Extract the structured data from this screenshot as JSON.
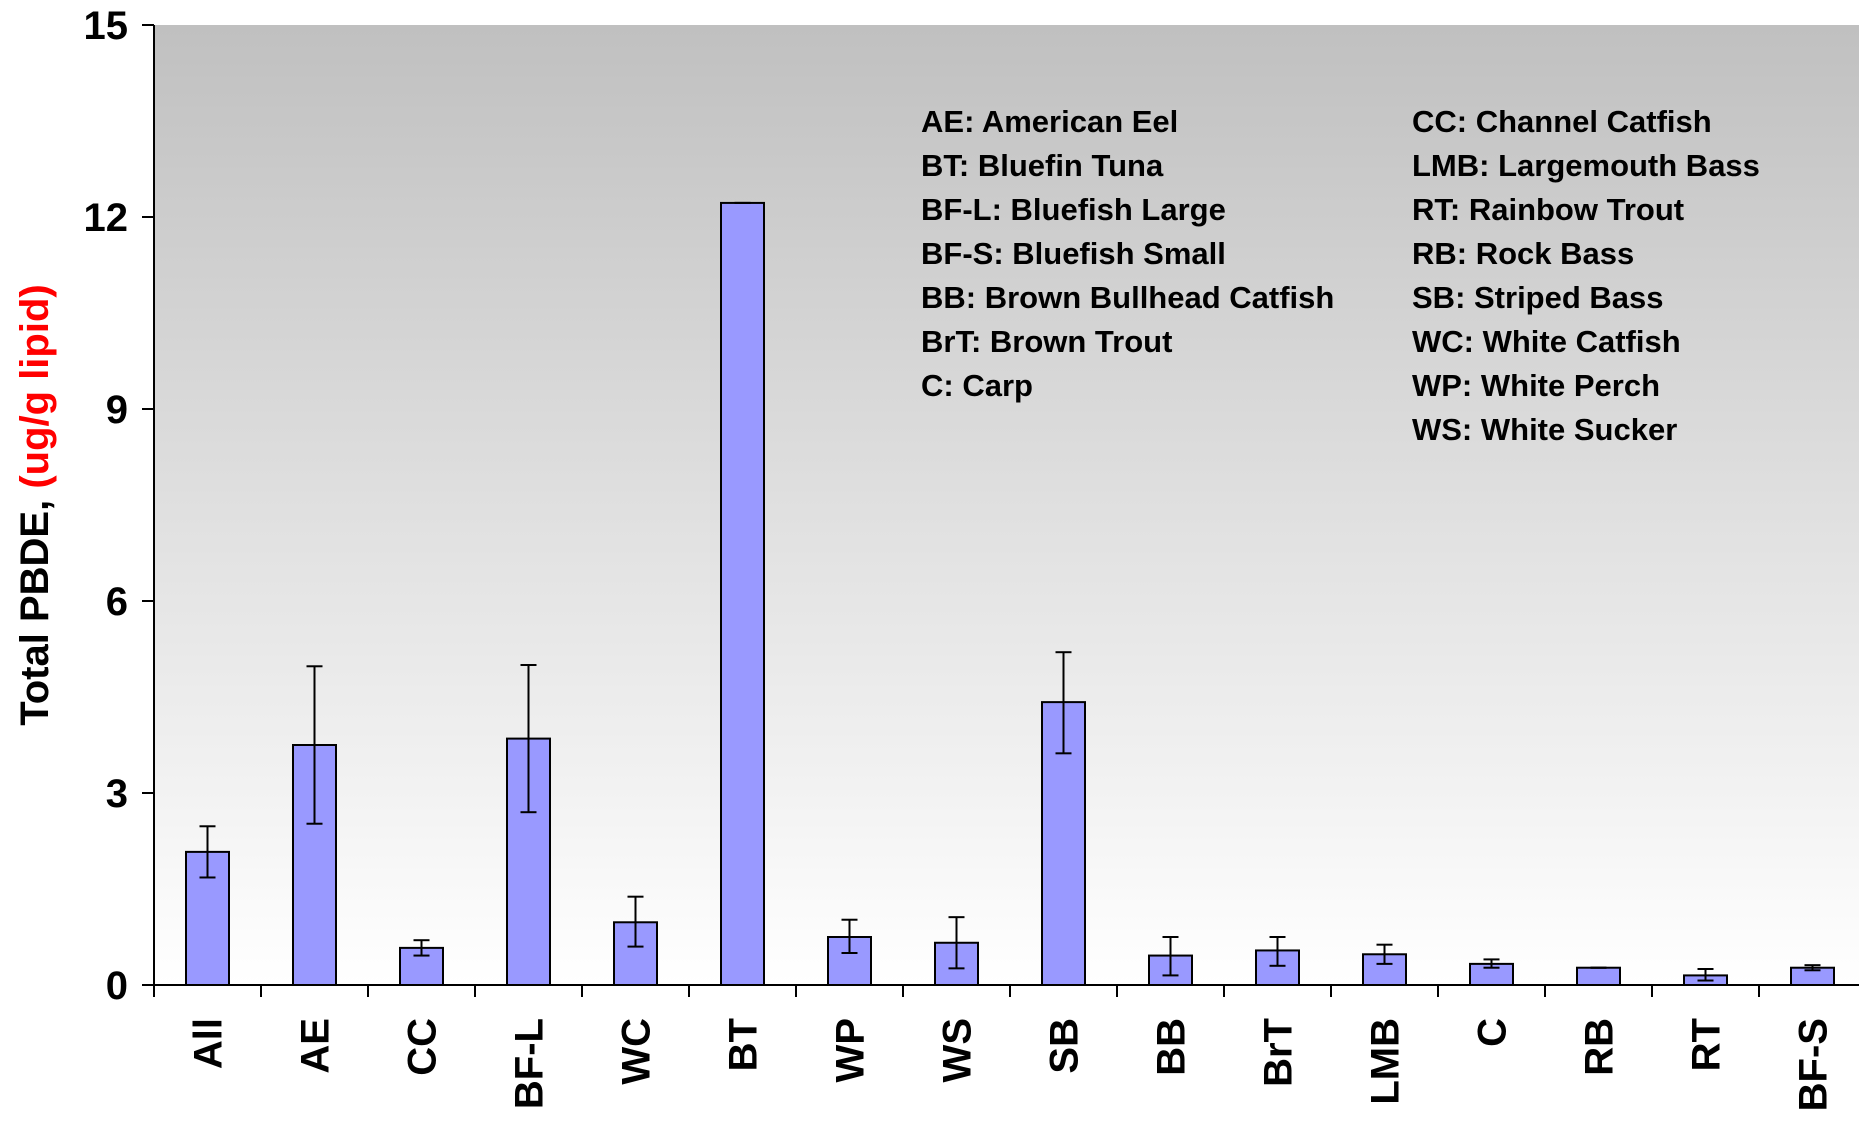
{
  "chart_data": {
    "type": "bar",
    "ylabel_main": "Total PBDE, ",
    "ylabel_unit": "(ug/g lipid)",
    "ylim": [
      0,
      15
    ],
    "yticks": [
      "0",
      "3",
      "6",
      "9",
      "12",
      "15"
    ],
    "ytick_values": [
      0,
      3,
      6,
      9,
      12,
      15
    ],
    "categories": [
      "All",
      "AE",
      "CC",
      "BF-L",
      "WC",
      "BT",
      "WP",
      "WS",
      "SB",
      "BB",
      "BrT",
      "LMB",
      "C",
      "RB",
      "RT",
      "BF-S"
    ],
    "values": [
      2.08,
      3.75,
      0.58,
      3.85,
      0.98,
      12.22,
      0.75,
      0.66,
      4.42,
      0.46,
      0.54,
      0.48,
      0.33,
      0.27,
      0.15,
      0.27
    ],
    "err_low": [
      1.68,
      2.52,
      0.46,
      2.7,
      0.6,
      12.22,
      0.5,
      0.26,
      3.62,
      0.15,
      0.3,
      0.33,
      0.27,
      0.27,
      0.07,
      0.23
    ],
    "err_high": [
      2.48,
      4.98,
      0.7,
      5.0,
      1.38,
      12.22,
      1.02,
      1.06,
      5.2,
      0.75,
      0.75,
      0.63,
      0.4,
      0.27,
      0.25,
      0.31
    ],
    "grid": false,
    "colors": {
      "bar": "#9999ff",
      "bar_edge": "#000000",
      "plot_bg_top": "#c0c0c0",
      "plot_bg_bottom": "#ffffff",
      "ylabel_unit": "#ff0000"
    },
    "legend_placement": "top-right",
    "legend_left": [
      "AE:  American Eel",
      "BT:  Bluefin Tuna",
      "BF-L:  Bluefish Large",
      "BF-S:  Bluefish Small",
      "BB:  Brown Bullhead Catfish",
      "BrT:  Brown Trout",
      "C:  Carp"
    ],
    "legend_right": [
      "CC:  Channel Catfish",
      "LMB:  Largemouth Bass",
      "RT:  Rainbow Trout",
      "RB:  Rock Bass",
      "SB:  Striped Bass",
      "WC:  White Catfish",
      "WP:  White Perch",
      "WS:  White Sucker"
    ]
  }
}
